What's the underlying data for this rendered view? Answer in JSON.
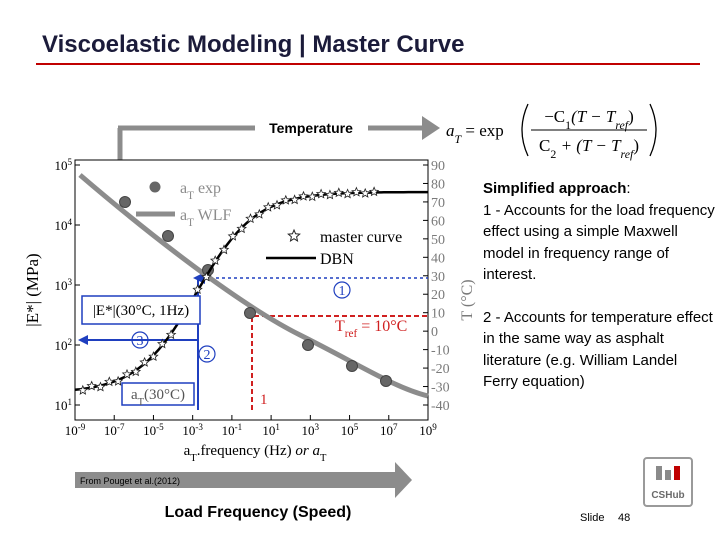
{
  "title": "Viscoelastic Modeling | Master Curve",
  "formula": {
    "label": "Temperature",
    "lhs": [
      {
        "t": "a",
        "italic": true
      },
      {
        "t": "T",
        "sub": true,
        "italic": true
      },
      {
        "t": " = exp"
      }
    ],
    "numerator": [
      {
        "t": "−C"
      },
      {
        "t": "1",
        "sub": true
      },
      {
        "t": "(T − T",
        "italic": true
      },
      {
        "t": "ref",
        "sub": true,
        "italic": true
      },
      {
        "t": ")"
      }
    ],
    "denominator": [
      {
        "t": "C"
      },
      {
        "t": "2",
        "sub": true
      },
      {
        "t": " + (T − T",
        "italic": true
      },
      {
        "t": "ref",
        "sub": true,
        "italic": true
      },
      {
        "t": ")"
      }
    ]
  },
  "figure": {
    "x_ticks": [
      {
        "base": "10",
        "exp": "-9"
      },
      {
        "base": "10",
        "exp": "-7"
      },
      {
        "base": "10",
        "exp": "-5"
      },
      {
        "base": "10",
        "exp": "-3"
      },
      {
        "base": "10",
        "exp": "-1"
      },
      {
        "base": "10",
        "exp": "1"
      },
      {
        "base": "10",
        "exp": "3"
      },
      {
        "base": "10",
        "exp": "5"
      },
      {
        "base": "10",
        "exp": "7"
      },
      {
        "base": "10",
        "exp": "9"
      }
    ],
    "y_ticks": [
      {
        "base": "10",
        "exp": "1"
      },
      {
        "base": "10",
        "exp": "2"
      },
      {
        "base": "10",
        "exp": "3"
      },
      {
        "base": "10",
        "exp": "4"
      },
      {
        "base": "10",
        "exp": "5"
      }
    ],
    "t_ticks": [
      "90",
      "80",
      "70",
      "60",
      "50",
      "40",
      "30",
      "20",
      "10",
      "0",
      "-10",
      "-20",
      "-30",
      "-40"
    ],
    "y_label": "|E*| (MPa)",
    "t_label": "T (°C)",
    "x_label": [
      {
        "t": "a"
      },
      {
        "t": "T",
        "sub": true
      },
      {
        "t": ".frequency (Hz) "
      },
      {
        "t": "or a",
        "italic": true
      },
      {
        "t": "T",
        "sub": true
      }
    ],
    "legend": [
      [
        {
          "t": "a"
        },
        {
          "t": "T",
          "sub": true
        },
        {
          "t": " exp"
        }
      ],
      [
        {
          "t": "a"
        },
        {
          "t": "T",
          "sub": true
        },
        {
          "t": " WLF"
        }
      ],
      [
        {
          "t": "master curve"
        }
      ],
      [
        {
          "t": "DBN"
        }
      ]
    ],
    "e_label": "|E*|(30°C, 1Hz)",
    "tref_label": [
      {
        "t": "T"
      },
      {
        "t": "ref",
        "sub": true
      },
      {
        "t": " = 10°C"
      }
    ],
    "at_label": [
      {
        "t": "a"
      },
      {
        "t": "T",
        "sub": true
      },
      {
        "t": "(30°C)"
      }
    ],
    "steps": [
      "1",
      "2",
      "3"
    ],
    "red_step": "1"
  },
  "approach": {
    "heading": "Simplified approach",
    "colon": ":",
    "points": [
      "1 - Accounts for the load frequency effect using a simple Maxwell model in frequency range of interest.",
      "2 - Accounts for temperature effect in the same way as asphalt literature (e.g. William Landel Ferry equation)"
    ]
  },
  "footer": {
    "source": "From Pouget et al.(2012)",
    "axis_caption": "Load Frequency (Speed)",
    "slide_label": "Slide",
    "slide_number": "48",
    "logo": "CSHub"
  }
}
